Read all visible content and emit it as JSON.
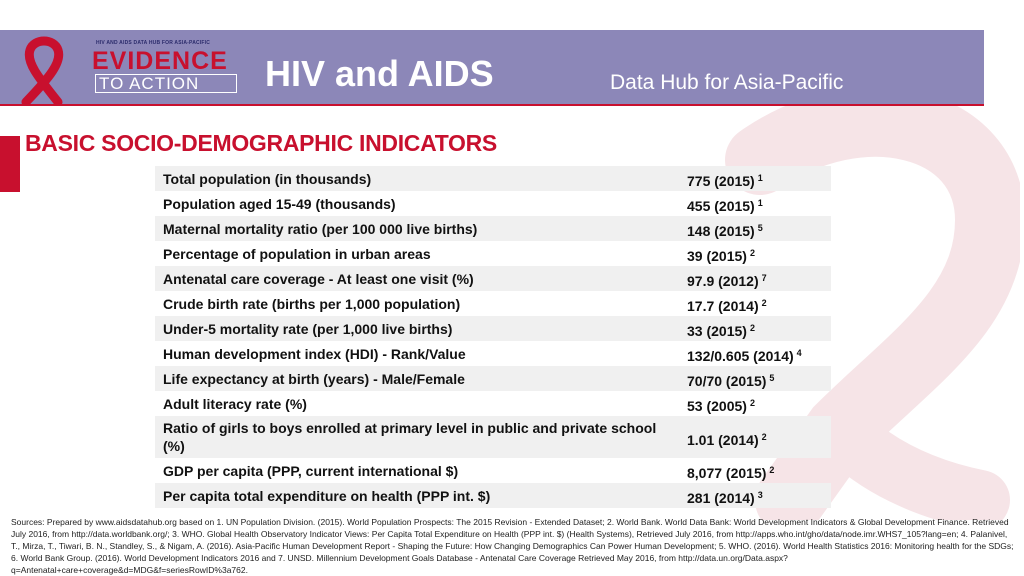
{
  "header": {
    "logo": {
      "tagline": "HIV AND AIDS DATA HUB FOR ASIA-PACIFIC",
      "line1": "EVIDENCE",
      "line2": "TO ACTION"
    },
    "title": "HIV and AIDS",
    "subtitle": "Data Hub for Asia-Pacific"
  },
  "section": {
    "title": "BASIC SOCIO-DEMOGRAPHIC INDICATORS"
  },
  "indicators": [
    {
      "label": "Total population (in thousands)",
      "value": "775 (2015)",
      "ref": "1"
    },
    {
      "label": "Population aged 15-49 (thousands)",
      "value": "455 (2015)",
      "ref": "1"
    },
    {
      "label": "Maternal mortality ratio (per 100 000 live births)",
      "value": "148 (2015)",
      "ref": "5"
    },
    {
      "label": "Percentage of population in urban areas",
      "value": "39 (2015)",
      "ref": "2"
    },
    {
      "label": "Antenatal care coverage -  At least one visit (%)",
      "value": "97.9 (2012)",
      "ref": "7"
    },
    {
      "label": "Crude birth rate (births per 1,000 population)",
      "value": "17.7 (2014)",
      "ref": "2"
    },
    {
      "label": "Under-5 mortality rate (per 1,000 live births)",
      "value": "33 (2015)",
      "ref": "2"
    },
    {
      "label": "Human development index (HDI) - Rank/Value",
      "value": "132/0.605 (2014)",
      "ref": "4"
    },
    {
      "label": "Life expectancy at birth (years) - Male/Female",
      "value": "70/70 (2015)",
      "ref": "5"
    },
    {
      "label": "Adult literacy rate (%)",
      "value": "53 (2005)",
      "ref": "2"
    },
    {
      "label": "Ratio of girls to boys enrolled at primary level in public and private school (%)",
      "value": "1.01 (2014)",
      "ref": "2"
    },
    {
      "label": "GDP per capita (PPP, current international $)",
      "value": "8,077 (2015)",
      "ref": "2"
    },
    {
      "label": "Per capita total expenditure on health (PPP int. $)",
      "value": "281 (2014)",
      "ref": "3"
    }
  ],
  "footer": {
    "sources": "Sources: Prepared by www.aidsdatahub.org based on 1. UN Population Division. (2015). World Population Prospects: The 2015 Revision - Extended Dataset; 2.  World Bank. World Data Bank: World Development Indicators & Global Development Finance. Retrieved July 2016, from http://data.worldbank.org/; 3. WHO. Global Health Observatory Indicator Views: Per Capita Total Expenditure on Health (PPP int. $) (Health Systems), Retrieved July 2016, from http://apps.who.int/gho/data/node.imr.WHS7_105?lang=en; 4. Palanivel, T., Mirza, T., Tiwari, B. N., Standley, S., & Nigam, A. (2016). Asia-Pacific Human Development Report - Shaping the Future: How Changing Demographics Can Power Human Development; 5. WHO. (2016). World Health Statistics 2016: Monitoring health for the SDGs; 6. World Bank Group. (2016). World Development Indicators 2016 and 7. UNSD. Millennium Development Goals Database -  Antenatal Care Coverage  Retrieved May 2016, from http://data.un.org/Data.aspx?q=Antenatal+care+coverage&d=MDG&f=seriesRowID%3a762."
  },
  "colors": {
    "header_band": "#8c87b8",
    "accent_red": "#c8102e",
    "row_stripe": "#f0f0f0",
    "background_ribbon": "#f6e4e7"
  },
  "icons": [
    "red-ribbon-logo-icon",
    "background-ribbon-graphic"
  ]
}
